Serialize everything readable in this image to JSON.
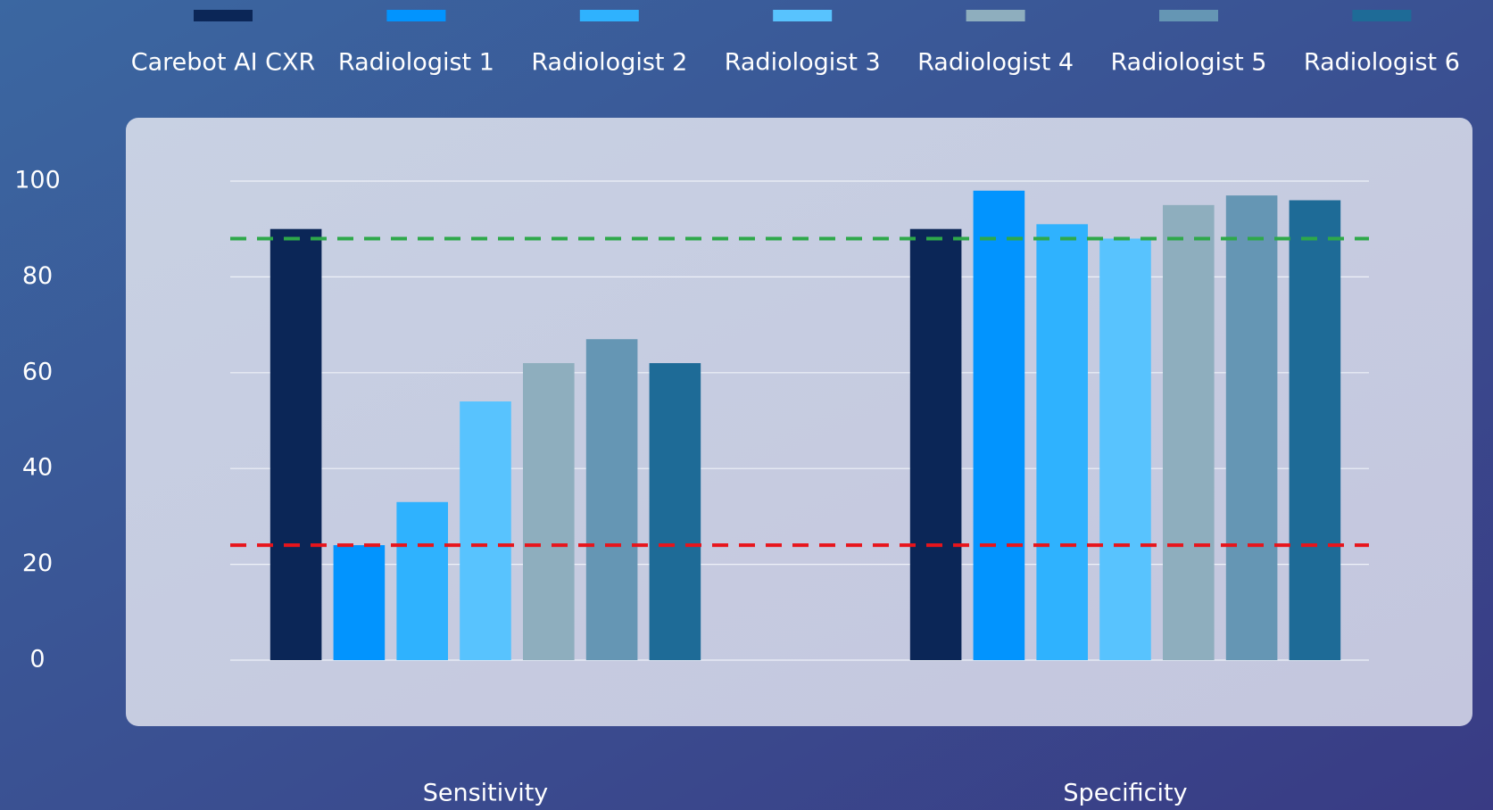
{
  "chart_data": {
    "type": "bar",
    "categories": [
      "Sensitivity",
      "Specificity"
    ],
    "series": [
      {
        "name": "Carebot AI CXR",
        "color": "#0b2657",
        "values": [
          90,
          90
        ]
      },
      {
        "name": "Radiologist 1",
        "color": "#0294fe",
        "values": [
          24,
          98
        ]
      },
      {
        "name": "Radiologist 2",
        "color": "#2fb2fe",
        "values": [
          33,
          91
        ]
      },
      {
        "name": "Radiologist 3",
        "color": "#58c3fe",
        "values": [
          54,
          88
        ]
      },
      {
        "name": "Radiologist 4",
        "color": "#8eaebe",
        "values": [
          62,
          95
        ]
      },
      {
        "name": "Radiologist 5",
        "color": "#6596b4",
        "values": [
          67,
          97
        ]
      },
      {
        "name": "Radiologist 6",
        "color": "#1e6b97",
        "values": [
          62,
          96
        ]
      }
    ],
    "reference_lines": [
      {
        "value": 88,
        "color": "#2ea84a"
      },
      {
        "value": 24,
        "color": "#e8141b"
      }
    ],
    "ylim": [
      0,
      100
    ],
    "yticks": [
      0,
      20,
      40,
      60,
      80,
      100
    ],
    "grid": true,
    "legend": "top"
  }
}
